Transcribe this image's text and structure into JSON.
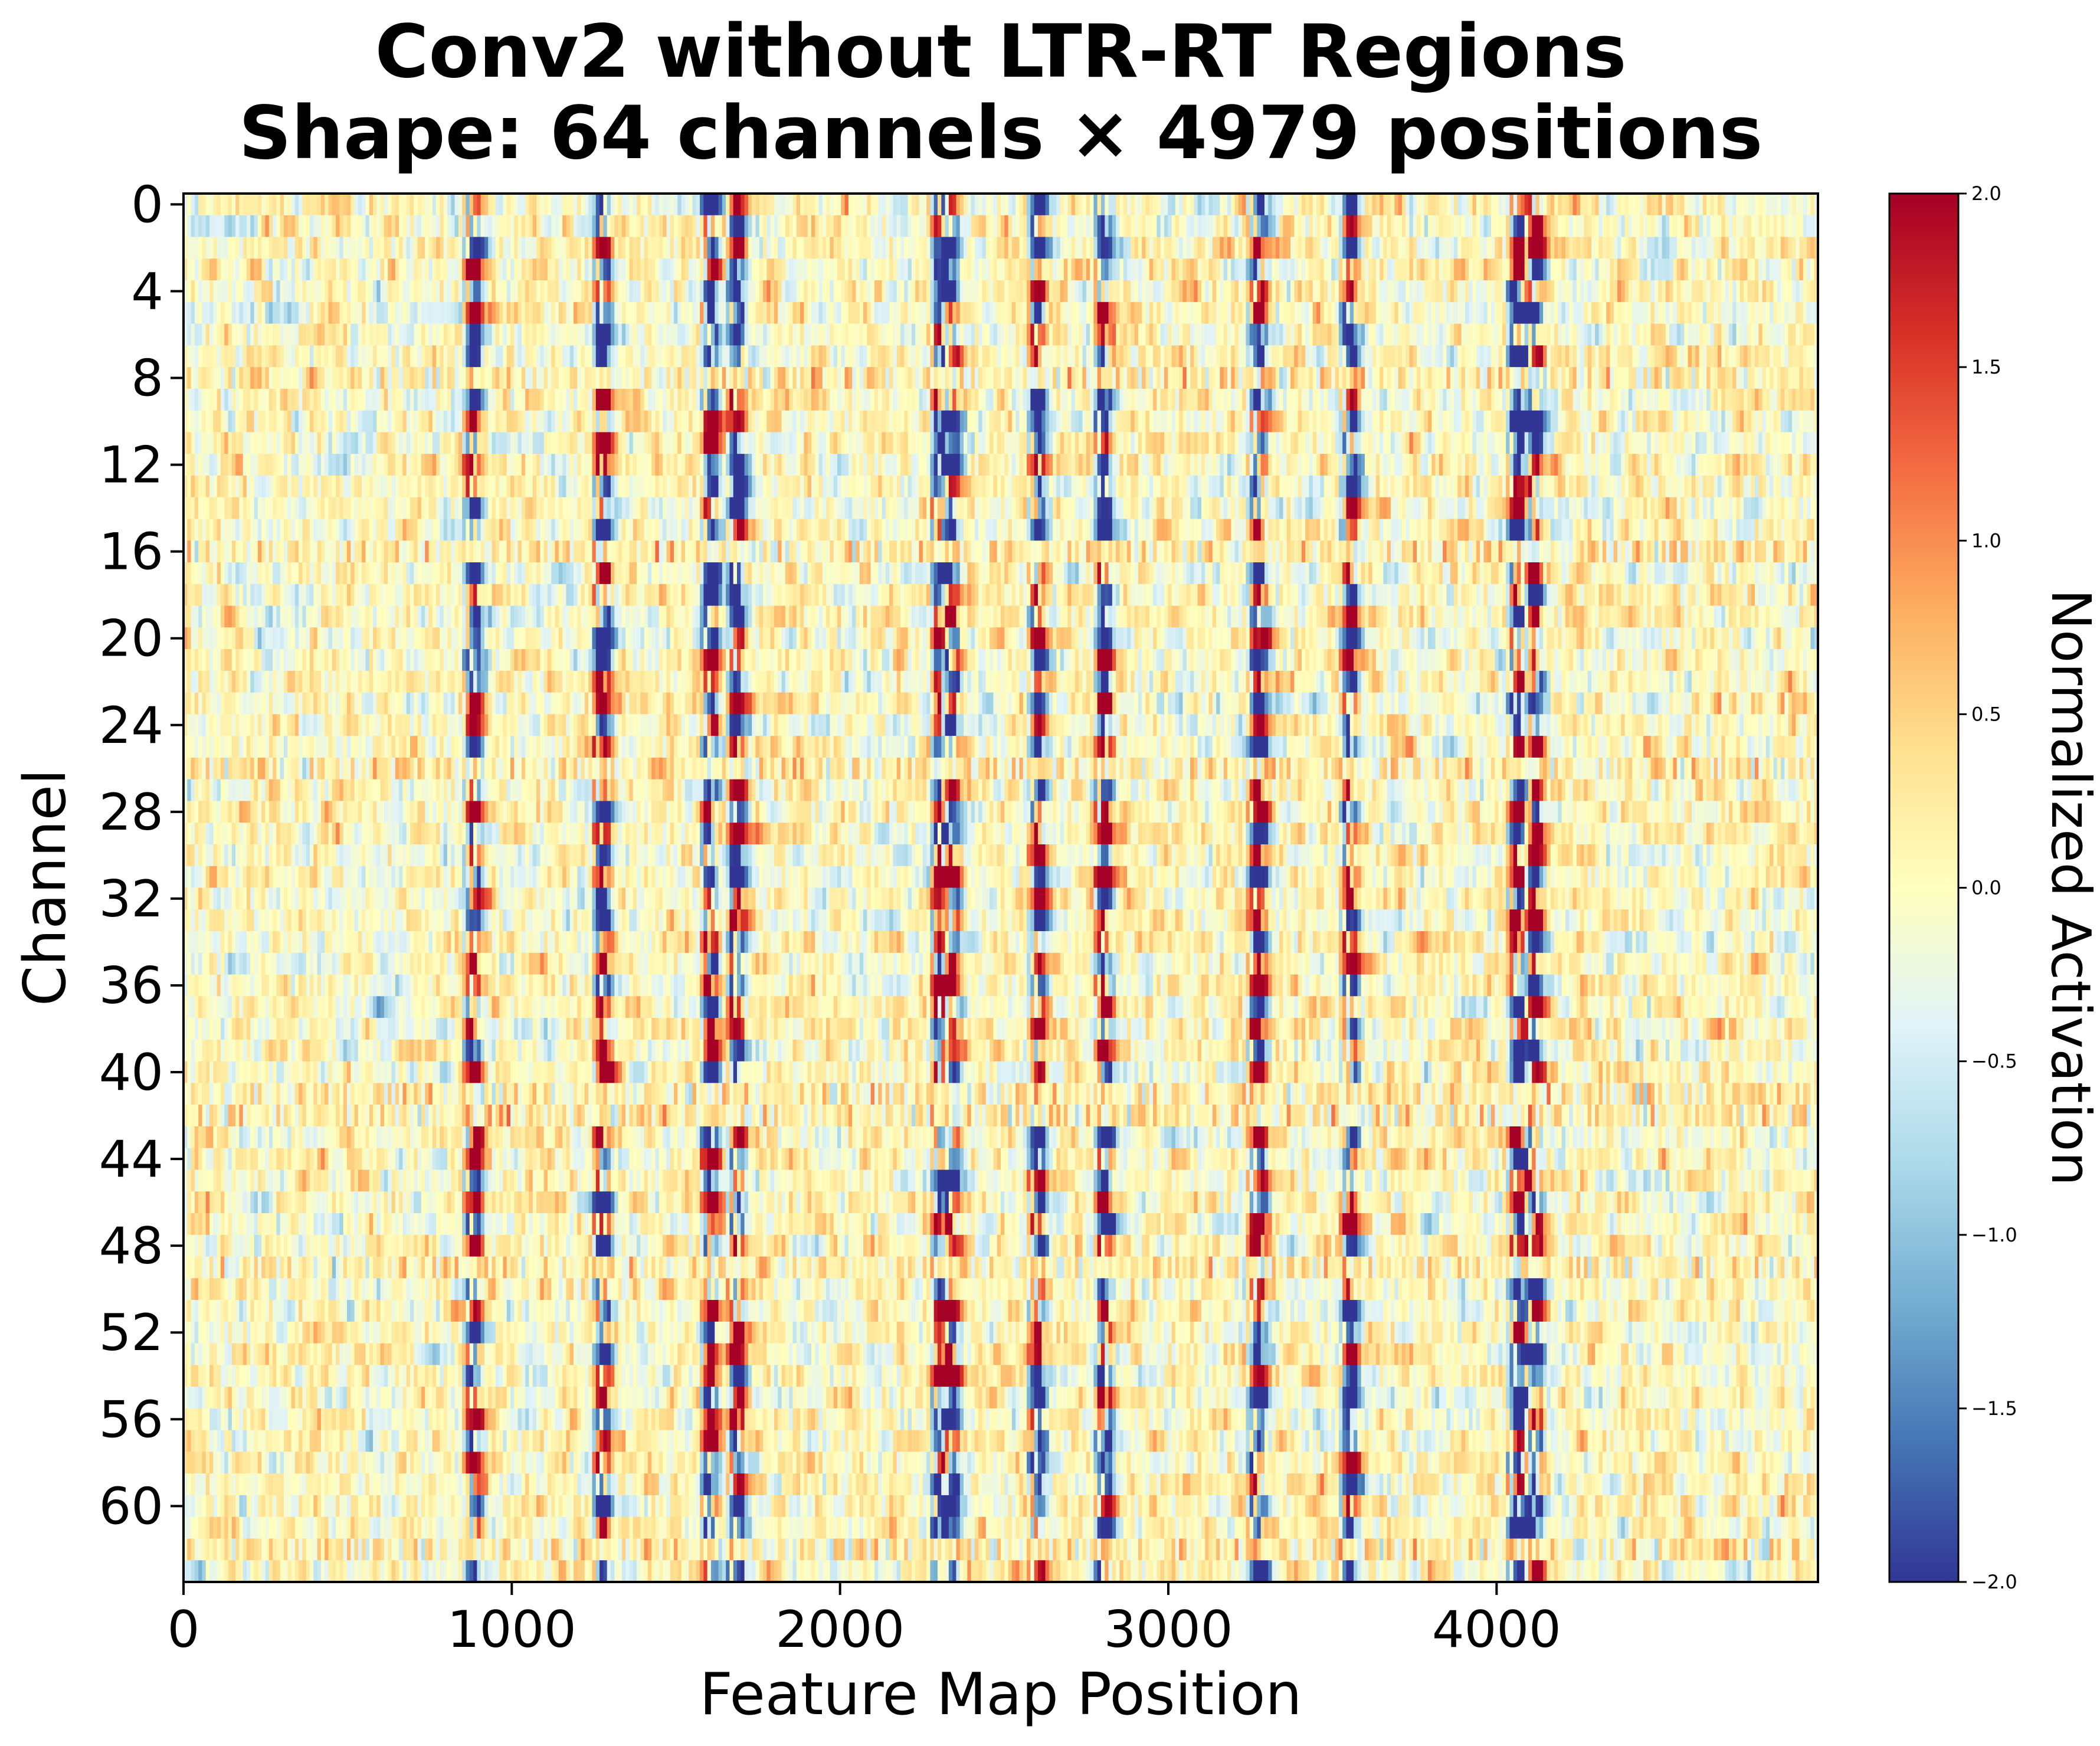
{
  "chart_data": {
    "type": "heatmap",
    "title_line1": "Conv2 without LTR-RT Regions",
    "title_line2": "Shape: 64 channels × 4979 positions",
    "xlabel": "Feature Map Position",
    "ylabel": "Channel",
    "x_range": [
      0,
      4979
    ],
    "y_range": [
      0,
      64
    ],
    "rows": 64,
    "columns": 4979,
    "x_ticks": [
      0,
      1000,
      2000,
      3000,
      4000
    ],
    "y_ticks": [
      0,
      4,
      8,
      12,
      16,
      20,
      24,
      28,
      32,
      36,
      40,
      44,
      48,
      52,
      56,
      60
    ],
    "colormap": "RdYlBu_r",
    "colormap_stops": [
      "#313695",
      "#4575b4",
      "#74add1",
      "#abd9e9",
      "#e0f3f8",
      "#ffffbf",
      "#fee090",
      "#fdae61",
      "#f46d43",
      "#d73027",
      "#a50026"
    ],
    "vmin": -2.0,
    "vmax": 2.0,
    "colorbar_label": "Normalized Activation",
    "colorbar_ticks": [
      "2.0",
      "1.5",
      "1.0",
      "0.5",
      "0.0",
      "−0.5",
      "−1.0",
      "−1.5",
      "−2.0"
    ],
    "colorbar_tick_values": [
      2.0,
      1.5,
      1.0,
      0.5,
      0.0,
      -0.5,
      -1.0,
      -1.5,
      -2.0
    ],
    "hot_position_bands": [
      880,
      1270,
      1600,
      1680,
      2300,
      2330,
      2600,
      2800,
      3270,
      3550,
      4060,
      4110
    ],
    "noisy_channels": [
      8,
      16,
      26,
      41,
      42,
      49,
      62
    ]
  }
}
